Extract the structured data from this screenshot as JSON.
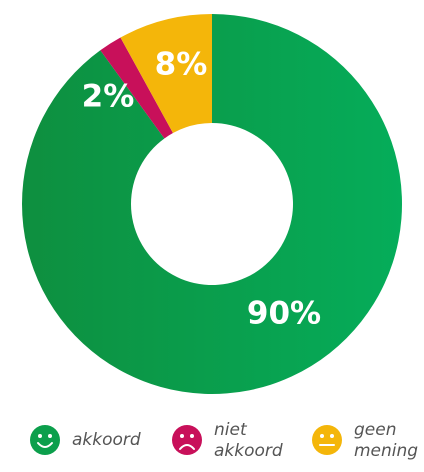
{
  "chart_data": {
    "type": "donut",
    "series": [
      {
        "name": "akkoord",
        "color": "#0c9f4c",
        "values": [
          90
        ],
        "value_labels": [
          "90%"
        ]
      },
      {
        "name": "niet akkoord",
        "color": "#c8105a",
        "values": [
          2
        ],
        "value_labels": [
          "2%"
        ]
      },
      {
        "name": "geen mening",
        "color": "#f4b60a",
        "values": [
          8
        ],
        "value_labels": [
          "8%"
        ]
      }
    ]
  }
}
